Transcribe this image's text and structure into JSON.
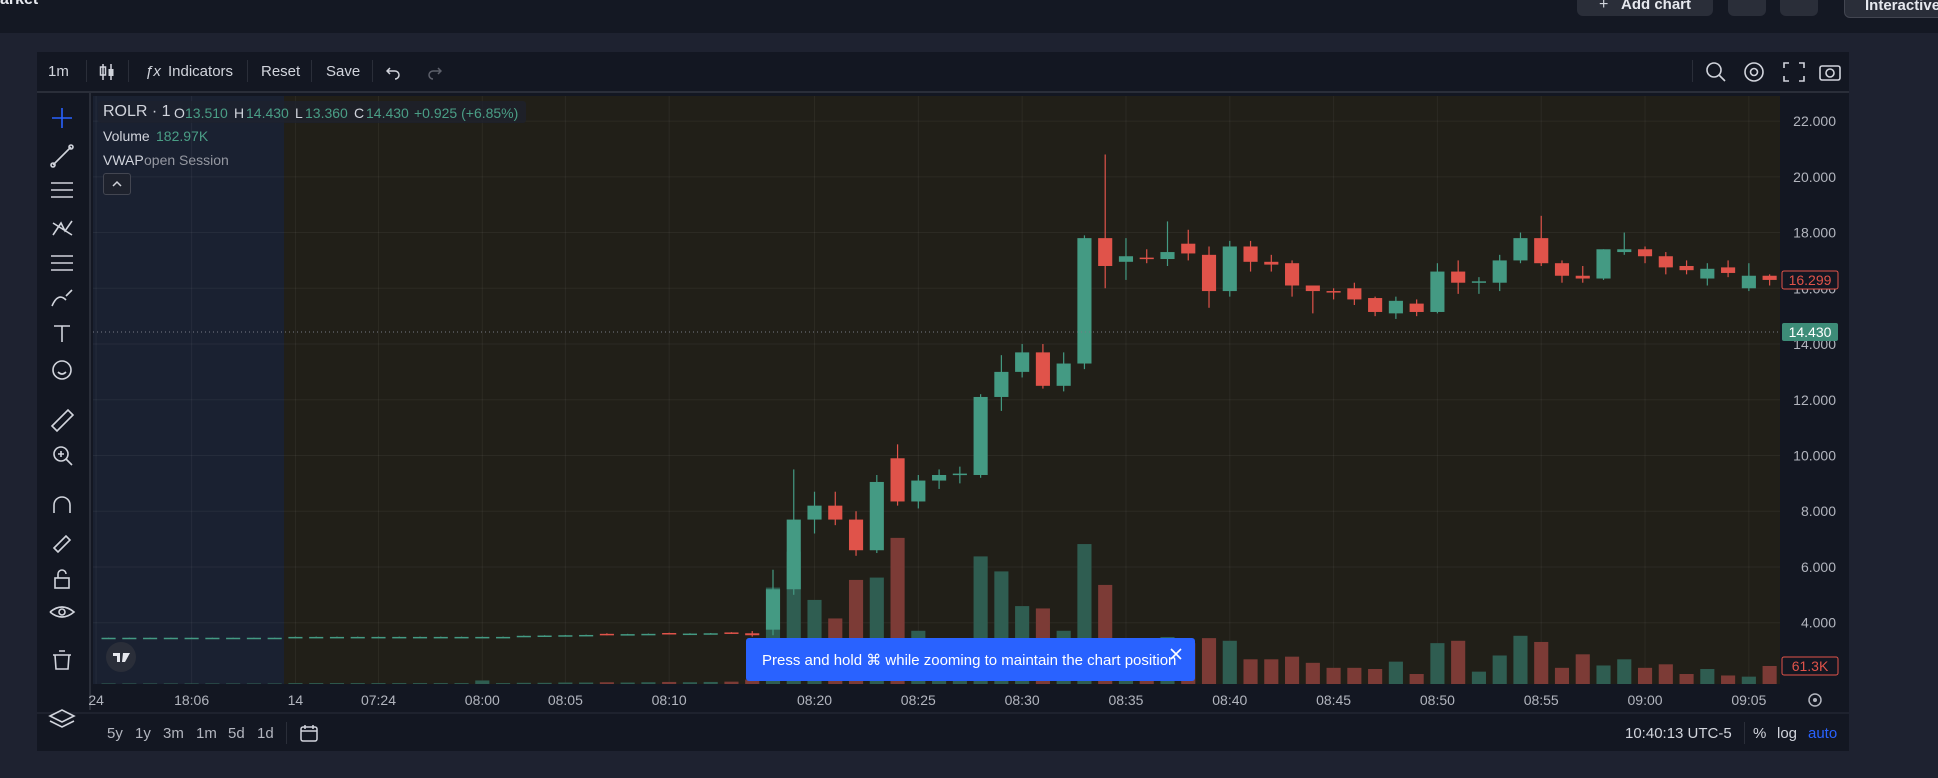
{
  "top_bar": {
    "page_title": "arket",
    "add_chart": "Add chart",
    "mode_button": "Interactive"
  },
  "toolbar": {
    "interval": "1m",
    "indicators": "Indicators",
    "reset": "Reset",
    "save": "Save"
  },
  "legend": {
    "symbol": "ROLR · 1",
    "o_label": "O",
    "o_value": "13.510",
    "h_label": "H",
    "h_value": "14.430",
    "l_label": "L",
    "l_value": "13.360",
    "c_label": "C",
    "c_value": "14.430",
    "change": "+0.925 (+6.85%)",
    "volume_label": "Volume",
    "volume_value": "182.97K",
    "vwap_label": "VWAP",
    "vwap_value": "open Session"
  },
  "toast": {
    "text": "Press and hold ⌘ while zooming to maintain the chart position"
  },
  "bottom_bar": {
    "ranges": [
      "5y",
      "1y",
      "3m",
      "1m",
      "5d",
      "1d"
    ],
    "clock": "10:40:13 UTC-5",
    "percent": "%",
    "log": "log",
    "auto": "auto"
  },
  "chart_data": {
    "type": "candlestick",
    "x": [
      -34,
      -33,
      -32,
      -31,
      -30,
      -29,
      -28,
      -27,
      -26,
      -25,
      -24,
      -23,
      -22,
      -21,
      -20,
      -19,
      -18,
      -17,
      -16,
      -15,
      -14,
      -13,
      -12,
      -11,
      -10,
      -9,
      -8,
      -7,
      -6,
      -5,
      -4,
      -3,
      -2,
      -1,
      0,
      1,
      2,
      3,
      4,
      5,
      6,
      7,
      8,
      9,
      10,
      11,
      12,
      13,
      14,
      15,
      16,
      17,
      18,
      19,
      20,
      21,
      22,
      23,
      24,
      25,
      26,
      27,
      28,
      29,
      30,
      31,
      32,
      33,
      34,
      35,
      36,
      37,
      38,
      39,
      40,
      41,
      42,
      43,
      44,
      45,
      46
    ],
    "open": [
      3.45,
      3.45,
      3.45,
      3.45,
      3.45,
      3.45,
      3.45,
      3.45,
      3.45,
      3.48,
      3.48,
      3.48,
      3.48,
      3.48,
      3.48,
      3.48,
      3.48,
      3.48,
      3.48,
      3.48,
      3.52,
      3.53,
      3.54,
      3.55,
      3.6,
      3.57,
      3.59,
      3.63,
      3.6,
      3.61,
      3.65,
      3.62,
      3.75,
      5.2,
      7.7,
      8.2,
      7.7,
      6.6,
      9.9,
      8.35,
      9.1,
      9.3,
      9.3,
      12.1,
      13.0,
      13.7,
      12.5,
      13.3,
      17.8,
      16.95,
      17.1,
      17.05,
      17.6,
      17.2,
      15.9,
      17.5,
      16.95,
      16.9,
      16.1,
      15.9,
      16.0,
      15.65,
      15.1,
      15.45,
      15.15,
      16.6,
      16.2,
      16.2,
      17.0,
      17.8,
      16.9,
      16.45,
      16.35,
      17.3,
      17.4,
      17.15,
      16.8,
      16.35,
      16.75,
      16.0,
      16.45
    ],
    "high": [
      3.46,
      3.46,
      3.46,
      3.46,
      3.46,
      3.46,
      3.46,
      3.46,
      3.46,
      3.5,
      3.5,
      3.5,
      3.5,
      3.5,
      3.5,
      3.5,
      3.5,
      3.5,
      3.5,
      3.5,
      3.54,
      3.55,
      3.56,
      3.57,
      3.62,
      3.6,
      3.61,
      3.64,
      3.62,
      3.63,
      3.66,
      3.7,
      5.9,
      9.5,
      8.7,
      8.7,
      8.0,
      9.3,
      10.4,
      9.3,
      9.5,
      9.6,
      12.2,
      13.6,
      14.0,
      14.0,
      13.7,
      17.9,
      20.8,
      17.8,
      17.4,
      18.4,
      18.1,
      17.5,
      17.7,
      17.7,
      17.2,
      17.0,
      16.1,
      16.0,
      16.2,
      15.7,
      15.7,
      15.6,
      16.9,
      17.0,
      16.4,
      17.2,
      18.0,
      18.6,
      17.0,
      16.8,
      17.4,
      18.0,
      17.5,
      17.3,
      17.0,
      16.9,
      17.0,
      16.9,
      16.5
    ],
    "low": [
      3.44,
      3.44,
      3.44,
      3.44,
      3.44,
      3.44,
      3.44,
      3.44,
      3.44,
      3.47,
      3.47,
      3.47,
      3.47,
      3.47,
      3.47,
      3.47,
      3.47,
      3.47,
      3.47,
      3.47,
      3.51,
      3.52,
      3.53,
      3.54,
      3.55,
      3.56,
      3.58,
      3.58,
      3.59,
      3.6,
      3.6,
      3.5,
      3.55,
      5.0,
      7.2,
      7.5,
      6.4,
      6.5,
      8.2,
      8.1,
      8.8,
      9.0,
      9.2,
      11.6,
      12.8,
      12.4,
      12.3,
      13.1,
      16.0,
      16.3,
      16.9,
      16.8,
      17.0,
      15.3,
      15.7,
      16.6,
      16.6,
      15.7,
      15.1,
      15.6,
      15.4,
      15.0,
      14.9,
      15.0,
      15.1,
      15.8,
      15.8,
      15.9,
      16.9,
      16.8,
      16.2,
      16.2,
      16.3,
      17.2,
      16.9,
      16.5,
      16.5,
      16.1,
      16.4,
      15.9,
      16.1
    ],
    "close": [
      3.46,
      3.46,
      3.46,
      3.46,
      3.46,
      3.46,
      3.46,
      3.46,
      3.46,
      3.49,
      3.49,
      3.49,
      3.49,
      3.49,
      3.49,
      3.49,
      3.49,
      3.49,
      3.49,
      3.49,
      3.53,
      3.54,
      3.55,
      3.56,
      3.57,
      3.59,
      3.6,
      3.6,
      3.61,
      3.62,
      3.62,
      3.55,
      5.2,
      7.7,
      8.2,
      7.7,
      6.6,
      9.05,
      8.35,
      9.1,
      9.3,
      9.35,
      12.1,
      13.0,
      13.7,
      12.5,
      13.3,
      17.8,
      16.8,
      17.15,
      17.05,
      17.3,
      17.25,
      15.9,
      17.5,
      16.95,
      16.85,
      16.1,
      15.9,
      15.85,
      15.6,
      15.15,
      15.55,
      15.15,
      16.6,
      16.2,
      16.25,
      17.0,
      17.8,
      16.9,
      16.45,
      16.35,
      17.4,
      17.4,
      17.15,
      16.75,
      16.65,
      16.7,
      16.55,
      16.45,
      16.3
    ],
    "volume": [
      2000,
      2000,
      2000,
      2000,
      2000,
      2000,
      2000,
      2000,
      2000,
      3000,
      3000,
      3000,
      3000,
      3000,
      3000,
      3000,
      3000,
      3000,
      12000,
      3000,
      4000,
      4000,
      5000,
      5000,
      6000,
      5000,
      6000,
      7000,
      6000,
      7000,
      8000,
      15000,
      328000,
      450000,
      286000,
      223000,
      354000,
      362000,
      497000,
      181000,
      114000,
      80000,
      434000,
      383000,
      265000,
      257000,
      181000,
      476000,
      337000,
      139000,
      118000,
      160000,
      139000,
      156000,
      147000,
      84000,
      84000,
      93000,
      72000,
      55000,
      55000,
      51000,
      76000,
      34000,
      139000,
      147000,
      42000,
      97000,
      164000,
      143000,
      55000,
      101000,
      63000,
      84000,
      55000,
      67000,
      34000,
      51000,
      29000,
      25000,
      61300
    ],
    "up_color": "#449a83",
    "down_color": "#e0534a",
    "volume_up_color": "#2f5d51",
    "volume_down_color": "#7c3b36",
    "xlim": [
      -34.75,
      46.5
    ],
    "xticks": [
      {
        "value": -34.6,
        "label": "24"
      },
      {
        "value": -30,
        "label": "18:06"
      },
      {
        "value": -25,
        "label": "14"
      },
      {
        "value": -21,
        "label": "07:24"
      },
      {
        "value": -16,
        "label": "08:00"
      },
      {
        "value": -12,
        "label": "08:05"
      },
      {
        "value": -7,
        "label": "08:10"
      },
      {
        "value": 0,
        "label": "08:20"
      },
      {
        "value": 5,
        "label": "08:25"
      },
      {
        "value": 10,
        "label": "08:30"
      },
      {
        "value": 15,
        "label": "08:35"
      },
      {
        "value": 20,
        "label": "08:40"
      },
      {
        "value": 25,
        "label": "08:45"
      },
      {
        "value": 30,
        "label": "08:50"
      },
      {
        "value": 35,
        "label": "08:55"
      },
      {
        "value": 40,
        "label": "09:00"
      },
      {
        "value": 45,
        "label": "09:05"
      }
    ],
    "ylim": [
      1.8,
      22.9
    ],
    "yticks": [
      {
        "value": 4,
        "label": "4.000"
      },
      {
        "value": 6,
        "label": "6.000"
      },
      {
        "value": 8,
        "label": "8.000"
      },
      {
        "value": 10,
        "label": "10.000"
      },
      {
        "value": 12,
        "label": "12.000"
      },
      {
        "value": 14,
        "label": "14.000"
      },
      {
        "value": 16,
        "label": "16.000"
      },
      {
        "value": 18,
        "label": "18.000"
      },
      {
        "value": 20,
        "label": "20.000"
      },
      {
        "value": 22,
        "label": "22.000"
      }
    ],
    "y2lim": [
      0,
      2000000
    ],
    "grid": true,
    "price_line": {
      "value": 14.43,
      "label": "14.430",
      "color": "#3d8c78"
    },
    "last_price": 16.299,
    "last_price_color": "#e0534a",
    "last_volume": {
      "value": 61300,
      "label": "61.3K"
    }
  }
}
